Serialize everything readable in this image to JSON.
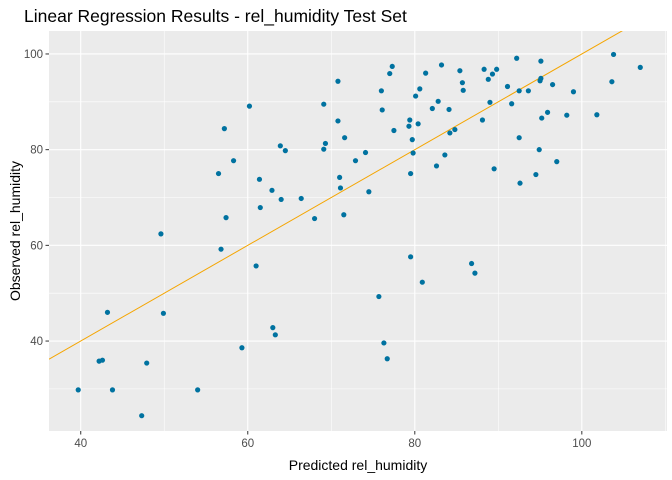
{
  "chart_data": {
    "type": "scatter",
    "title": "Linear Regression Results - rel_humidity Test Set",
    "xlabel": "Predicted rel_humidity",
    "ylabel": "Observed rel_humidity",
    "xlim": [
      36.2,
      110.2
    ],
    "ylim": [
      21.2,
      104.8
    ],
    "x_ticks": [
      40,
      60,
      80,
      100
    ],
    "y_ticks": [
      40,
      60,
      80,
      100
    ],
    "grid": true,
    "panel_background": "#ebebeb",
    "point_color": "#0072a0",
    "line_color": "#f5a500",
    "regression_line": {
      "slope": 1.0,
      "intercept": 0.0
    },
    "points": [
      {
        "x": 39.7,
        "y": 29.8
      },
      {
        "x": 42.2,
        "y": 35.8
      },
      {
        "x": 42.6,
        "y": 36.0
      },
      {
        "x": 43.2,
        "y": 46.0
      },
      {
        "x": 43.8,
        "y": 29.8
      },
      {
        "x": 47.3,
        "y": 24.4
      },
      {
        "x": 47.9,
        "y": 35.4
      },
      {
        "x": 49.6,
        "y": 62.4
      },
      {
        "x": 49.9,
        "y": 45.8
      },
      {
        "x": 54.0,
        "y": 29.8
      },
      {
        "x": 56.5,
        "y": 75.0
      },
      {
        "x": 56.8,
        "y": 59.2
      },
      {
        "x": 57.2,
        "y": 84.4
      },
      {
        "x": 57.4,
        "y": 65.8
      },
      {
        "x": 58.3,
        "y": 77.7
      },
      {
        "x": 59.3,
        "y": 38.6
      },
      {
        "x": 60.2,
        "y": 89.1
      },
      {
        "x": 61.0,
        "y": 55.7
      },
      {
        "x": 61.4,
        "y": 73.8
      },
      {
        "x": 61.5,
        "y": 67.9
      },
      {
        "x": 62.9,
        "y": 71.5
      },
      {
        "x": 63.0,
        "y": 42.8
      },
      {
        "x": 63.3,
        "y": 41.3
      },
      {
        "x": 63.9,
        "y": 80.8
      },
      {
        "x": 64.0,
        "y": 69.6
      },
      {
        "x": 64.5,
        "y": 79.8
      },
      {
        "x": 66.4,
        "y": 69.8
      },
      {
        "x": 68.0,
        "y": 65.6
      },
      {
        "x": 69.1,
        "y": 89.5
      },
      {
        "x": 69.1,
        "y": 80.1
      },
      {
        "x": 69.3,
        "y": 81.3
      },
      {
        "x": 70.8,
        "y": 94.3
      },
      {
        "x": 70.8,
        "y": 86.0
      },
      {
        "x": 71.0,
        "y": 74.2
      },
      {
        "x": 71.1,
        "y": 72.0
      },
      {
        "x": 71.5,
        "y": 66.4
      },
      {
        "x": 71.6,
        "y": 82.5
      },
      {
        "x": 72.9,
        "y": 77.7
      },
      {
        "x": 74.1,
        "y": 79.4
      },
      {
        "x": 74.5,
        "y": 71.2
      },
      {
        "x": 75.7,
        "y": 49.3
      },
      {
        "x": 76.0,
        "y": 92.3
      },
      {
        "x": 76.1,
        "y": 88.3
      },
      {
        "x": 76.3,
        "y": 39.6
      },
      {
        "x": 76.7,
        "y": 36.3
      },
      {
        "x": 77.0,
        "y": 95.9
      },
      {
        "x": 77.3,
        "y": 97.4
      },
      {
        "x": 77.5,
        "y": 84.0
      },
      {
        "x": 79.3,
        "y": 84.9
      },
      {
        "x": 79.4,
        "y": 86.2
      },
      {
        "x": 79.5,
        "y": 75.0
      },
      {
        "x": 79.5,
        "y": 57.6
      },
      {
        "x": 79.7,
        "y": 82.1
      },
      {
        "x": 79.8,
        "y": 79.3
      },
      {
        "x": 80.1,
        "y": 91.2
      },
      {
        "x": 80.4,
        "y": 85.4
      },
      {
        "x": 80.6,
        "y": 92.7
      },
      {
        "x": 80.9,
        "y": 52.3
      },
      {
        "x": 81.3,
        "y": 96.0
      },
      {
        "x": 82.1,
        "y": 88.6
      },
      {
        "x": 82.6,
        "y": 76.6
      },
      {
        "x": 82.8,
        "y": 90.1
      },
      {
        "x": 83.2,
        "y": 97.7
      },
      {
        "x": 83.6,
        "y": 78.9
      },
      {
        "x": 84.1,
        "y": 88.4
      },
      {
        "x": 84.2,
        "y": 83.5
      },
      {
        "x": 84.8,
        "y": 84.2
      },
      {
        "x": 85.4,
        "y": 96.5
      },
      {
        "x": 85.7,
        "y": 94.0
      },
      {
        "x": 85.8,
        "y": 92.4
      },
      {
        "x": 86.8,
        "y": 56.2
      },
      {
        "x": 87.2,
        "y": 54.2
      },
      {
        "x": 88.1,
        "y": 86.2
      },
      {
        "x": 88.3,
        "y": 96.8
      },
      {
        "x": 88.8,
        "y": 94.7
      },
      {
        "x": 89.0,
        "y": 89.9
      },
      {
        "x": 89.3,
        "y": 95.8
      },
      {
        "x": 89.5,
        "y": 76.0
      },
      {
        "x": 89.8,
        "y": 96.8
      },
      {
        "x": 91.1,
        "y": 93.2
      },
      {
        "x": 91.6,
        "y": 89.6
      },
      {
        "x": 92.2,
        "y": 99.1
      },
      {
        "x": 92.5,
        "y": 92.3
      },
      {
        "x": 92.5,
        "y": 82.5
      },
      {
        "x": 92.6,
        "y": 73.0
      },
      {
        "x": 93.6,
        "y": 92.3
      },
      {
        "x": 94.5,
        "y": 74.8
      },
      {
        "x": 94.9,
        "y": 80.0
      },
      {
        "x": 95.0,
        "y": 94.4
      },
      {
        "x": 95.1,
        "y": 94.9
      },
      {
        "x": 95.1,
        "y": 98.5
      },
      {
        "x": 95.2,
        "y": 86.6
      },
      {
        "x": 95.9,
        "y": 87.8
      },
      {
        "x": 96.5,
        "y": 93.6
      },
      {
        "x": 97.0,
        "y": 77.5
      },
      {
        "x": 98.2,
        "y": 87.2
      },
      {
        "x": 99.0,
        "y": 92.1
      },
      {
        "x": 101.8,
        "y": 87.3
      },
      {
        "x": 103.6,
        "y": 94.2
      },
      {
        "x": 103.8,
        "y": 99.9
      },
      {
        "x": 107.0,
        "y": 97.2
      }
    ]
  }
}
